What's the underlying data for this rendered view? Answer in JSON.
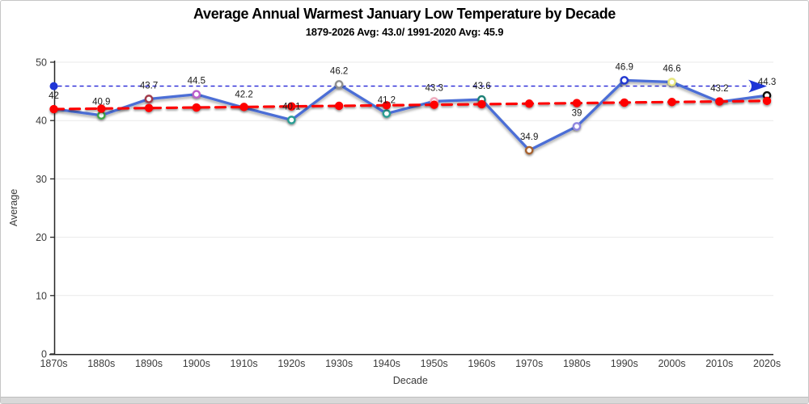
{
  "chart_data": {
    "type": "line",
    "title": "Average Annual Warmest January Low Temperature by Decade",
    "subtitle": "1879-2026 Avg: 43.0/ 1991-2020 Avg: 45.9",
    "xlabel": "Decade",
    "ylabel": "Average",
    "ylim": [
      0,
      50
    ],
    "yticks": [
      0,
      10,
      20,
      30,
      40,
      50
    ],
    "grid": "horizontal-light",
    "legend": "none",
    "categories": [
      "1870s",
      "1880s",
      "1890s",
      "1900s",
      "1910s",
      "1920s",
      "1930s",
      "1940s",
      "1950s",
      "1960s",
      "1970s",
      "1980s",
      "1990s",
      "2000s",
      "2010s",
      "2020s"
    ],
    "series": [
      {
        "name": "warmest-january-low-by-decade",
        "type": "line",
        "color": "#4c6ed6",
        "values": [
          42,
          40.9,
          43.7,
          44.5,
          42.2,
          40.1,
          46.2,
          41.2,
          43.3,
          43.6,
          34.9,
          39,
          46.9,
          46.6,
          43.2,
          44.3
        ],
        "point_labels": [
          "42",
          "40.9",
          "43.7",
          "44.5",
          "42.2",
          "40.1",
          "46.2",
          "41.2",
          "43.3",
          "43.6",
          "34.9",
          "39",
          "46.9",
          "46.6",
          "43.2",
          "44.3"
        ],
        "marker_style": "open-circle",
        "marker_colors": [
          null,
          "#3fa84a",
          "#a23b4c",
          "#bb5ecc",
          null,
          "#2b9d93",
          "#8f8f8f",
          "#2b9d93",
          "#efa9bc",
          "#1d8076",
          "#a8622f",
          "#8f86e0",
          "#2137d1",
          "#e6e67c",
          null,
          "#111111"
        ]
      },
      {
        "name": "linear-trend",
        "type": "line",
        "style": "dashed",
        "color": "#ff0000",
        "marker_style": "filled-circle",
        "values": [
          41.96,
          42.05,
          42.15,
          42.24,
          42.33,
          42.43,
          42.52,
          42.62,
          42.71,
          42.8,
          42.9,
          42.99,
          43.09,
          43.18,
          43.27,
          43.37
        ]
      },
      {
        "name": "avg-1991-2020-reference",
        "type": "horizontal-line",
        "style": "dashed",
        "color": "#2323d6",
        "value": 45.9,
        "start_marker": "filled-circle",
        "end_marker": "right-arrow"
      }
    ],
    "axis_color": "#262626",
    "gridline_color": "#e9e9e9",
    "label_color": "#1a1a1a",
    "tick_label_color": "#3b3b3b"
  }
}
